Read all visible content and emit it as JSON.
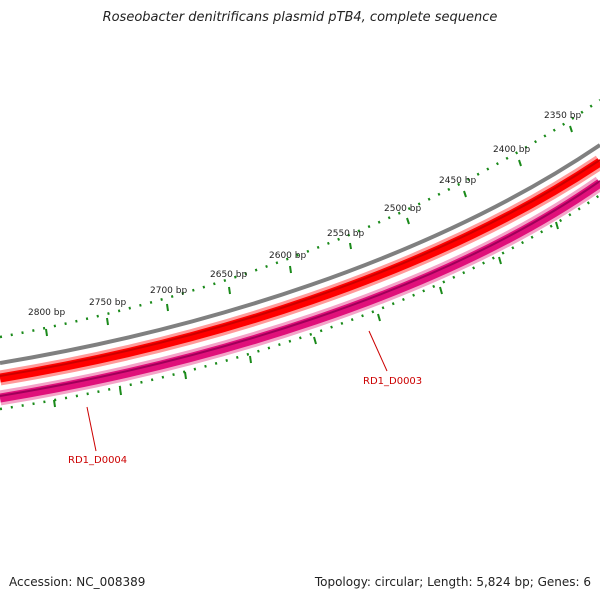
{
  "title": "Roseobacter denitrificans plasmid pTB4, complete sequence",
  "ruler_labels": [
    "2350 bp",
    "2400 bp",
    "2450 bp",
    "2500 bp",
    "2550 bp",
    "2600 bp",
    "2650 bp",
    "2700 bp",
    "2750 bp",
    "2800 bp"
  ],
  "genes": [
    {
      "label": "RD1_D0003",
      "strand": "reverse",
      "color": "#e0107a"
    },
    {
      "label": "RD1_D0004",
      "strand": "reverse",
      "color": "#e0107a"
    }
  ],
  "tracks": {
    "backbone_color": "#808080",
    "forward_color": "#ff0000",
    "reverse_color": "#e0107a",
    "tick_color": "#1a8a1a",
    "label_color": "#cc0000"
  },
  "footer": {
    "accession": "Accession: NC_008389",
    "summary": "Topology: circular; Length: 5,824 bp; Genes: 6"
  }
}
